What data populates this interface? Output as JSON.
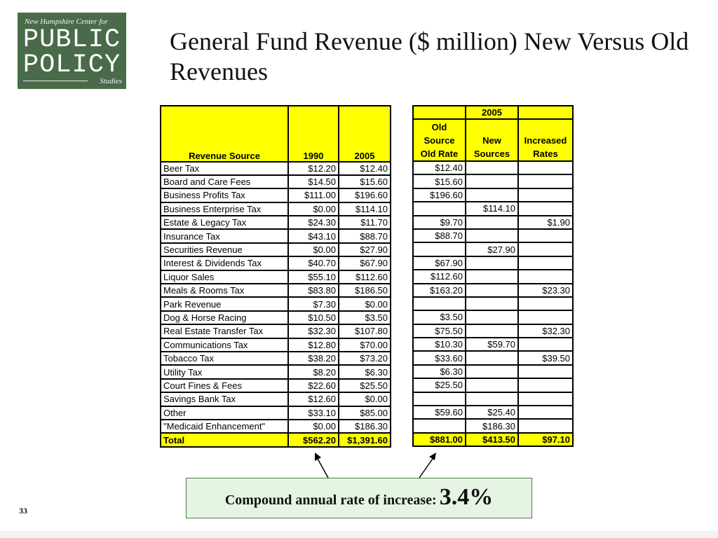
{
  "logo": {
    "top_text": "New Hampshire Center for",
    "line1": "PUBLIC",
    "line2": "POLICY",
    "studies": "Studies"
  },
  "title": "General Fund Revenue ($ million) New Versus Old Revenues",
  "page_number": "33",
  "callout": {
    "label": "Compound annual rate of increase:",
    "value": "3.4%"
  },
  "chart_data": {
    "type": "table",
    "title": "General Fund Revenue ($ million) New Versus Old Revenues",
    "columns_left": [
      "Revenue Source",
      "1990",
      "2005"
    ],
    "columns_right_group": "2005",
    "columns_right": [
      "Old Source Old Rate",
      "New Sources",
      "Increased Rates"
    ],
    "rows": [
      {
        "source": "Beer Tax",
        "y1990": "$12.20",
        "y2005": "$12.40",
        "old": "$12.40",
        "new": "",
        "inc": ""
      },
      {
        "source": "Board and Care Fees",
        "y1990": "$14.50",
        "y2005": "$15.60",
        "old": "$15.60",
        "new": "",
        "inc": ""
      },
      {
        "source": "Business Profits Tax",
        "y1990": "$111.00",
        "y2005": "$196.60",
        "old": "$196.60",
        "new": "",
        "inc": ""
      },
      {
        "source": "Business Enterprise Tax",
        "y1990": "$0.00",
        "y2005": "$114.10",
        "old": "",
        "new": "$114.10",
        "inc": ""
      },
      {
        "source": "Estate & Legacy Tax",
        "y1990": "$24.30",
        "y2005": "$11.70",
        "old": "$9.70",
        "new": "",
        "inc": "$1.90"
      },
      {
        "source": "Insurance Tax",
        "y1990": "$43.10",
        "y2005": "$88.70",
        "old": "$88.70",
        "new": "",
        "inc": ""
      },
      {
        "source": "Securities Revenue",
        "y1990": "$0.00",
        "y2005": "$27.90",
        "old": "",
        "new": "$27.90",
        "inc": ""
      },
      {
        "source": "Interest & Dividends Tax",
        "y1990": "$40.70",
        "y2005": "$67.90",
        "old": "$67.90",
        "new": "",
        "inc": ""
      },
      {
        "source": "Liquor Sales",
        "y1990": "$55.10",
        "y2005": "$112.60",
        "old": "$112.60",
        "new": "",
        "inc": ""
      },
      {
        "source": "Meals & Rooms Tax",
        "y1990": "$83.80",
        "y2005": "$186.50",
        "old": "$163.20",
        "new": "",
        "inc": "$23.30"
      },
      {
        "source": "Park Revenue",
        "y1990": "$7.30",
        "y2005": "$0.00",
        "old": "",
        "new": "",
        "inc": ""
      },
      {
        "source": "Dog & Horse Racing",
        "y1990": "$10.50",
        "y2005": "$3.50",
        "old": "$3.50",
        "new": "",
        "inc": ""
      },
      {
        "source": "Real Estate Transfer Tax",
        "y1990": "$32.30",
        "y2005": "$107.80",
        "old": "$75.50",
        "new": "",
        "inc": "$32.30"
      },
      {
        "source": "Communications Tax",
        "y1990": "$12.80",
        "y2005": "$70.00",
        "old": "$10.30",
        "new": "$59.70",
        "inc": ""
      },
      {
        "source": "Tobacco Tax",
        "y1990": "$38.20",
        "y2005": "$73.20",
        "old": "$33.60",
        "new": "",
        "inc": "$39.50"
      },
      {
        "source": "Utility Tax",
        "y1990": "$8.20",
        "y2005": "$6.30",
        "old": "$6.30",
        "new": "",
        "inc": ""
      },
      {
        "source": "Court Fines & Fees",
        "y1990": "$22.60",
        "y2005": "$25.50",
        "old": "$25.50",
        "new": "",
        "inc": ""
      },
      {
        "source": "Savings Bank Tax",
        "y1990": "$12.60",
        "y2005": "$0.00",
        "old": "",
        "new": "",
        "inc": ""
      },
      {
        "source": "Other",
        "y1990": "$33.10",
        "y2005": "$85.00",
        "old": "$59.60",
        "new": "$25.40",
        "inc": ""
      },
      {
        "source": "\"Medicaid Enhancement\"",
        "y1990": "$0.00",
        "y2005": "$186.30",
        "old": "",
        "new": "$186.30",
        "inc": ""
      }
    ],
    "total": {
      "source": "Total",
      "y1990": "$562.20",
      "y2005": "$1,391.60",
      "old": "$881.00",
      "new": "$413.50",
      "inc": "$97.10"
    }
  },
  "colors": {
    "header_fill": "#ffff00",
    "logo_bg": "#4a6b4a",
    "callout_bg": "#e6f5e3"
  }
}
